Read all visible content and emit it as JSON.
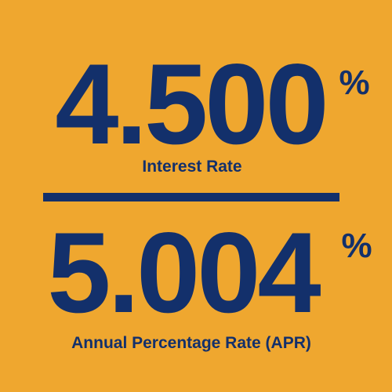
{
  "rates": [
    {
      "value": "4.500",
      "unit": "%",
      "label": "Interest Rate"
    },
    {
      "value": "5.004",
      "unit": "%",
      "label": "Annual Percentage Rate (APR)"
    }
  ]
}
